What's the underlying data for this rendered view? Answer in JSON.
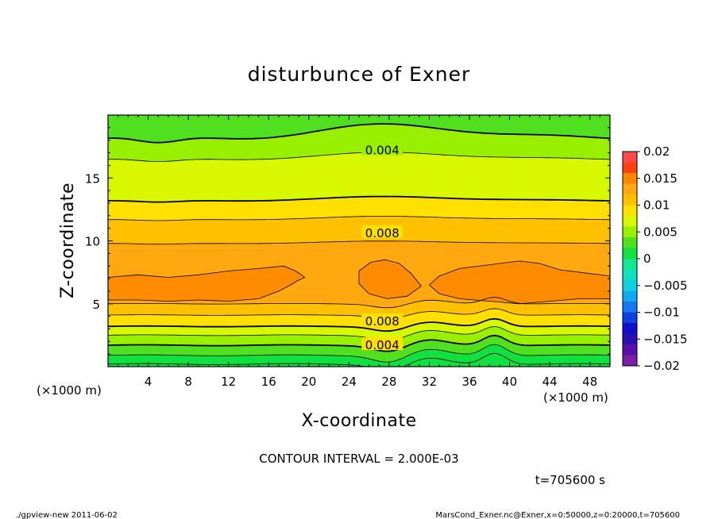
{
  "chart_data": {
    "type": "heatmap",
    "title": "disturbunce of Exner",
    "xlabel": "X-coordinate",
    "ylabel": "Z-coordinate",
    "x_unit": "(×1000 m)",
    "y_unit": "(×1000 m)",
    "xlim": [
      0,
      50
    ],
    "ylim": [
      0,
      20
    ],
    "x_ticks": [
      "4",
      "8",
      "12",
      "16",
      "20",
      "24",
      "28",
      "32",
      "36",
      "40",
      "44",
      "48"
    ],
    "x_tick_values": [
      4,
      8,
      12,
      16,
      20,
      24,
      28,
      32,
      36,
      40,
      44,
      48
    ],
    "y_ticks": [
      "5",
      "10",
      "15"
    ],
    "y_tick_values": [
      5,
      10,
      15
    ],
    "colorbar": {
      "labels": [
        "0.02",
        "0.015",
        "0.01",
        "0.005",
        "0",
        "−0.005",
        "−0.01",
        "−0.015",
        "−0.02"
      ],
      "values": [
        0.02,
        0.015,
        0.01,
        0.005,
        0,
        -0.005,
        -0.01,
        -0.015,
        -0.02
      ],
      "min": -0.02,
      "max": 0.02,
      "step": 0.002
    },
    "contour_labels": [
      {
        "text": "0.004",
        "x": 27,
        "z": 17.5
      },
      {
        "text": "0.008",
        "x": 27,
        "z": 10.6
      },
      {
        "text": "0.008",
        "x": 27,
        "z": 3.5
      },
      {
        "text": "0.004",
        "x": 27,
        "z": 1.7
      }
    ],
    "contour_interval_text": "CONTOUR INTERVAL = 2.000E-03",
    "time_label": "t=705600 s",
    "footer_left": "./gpview-new   2011-06-02",
    "footer_right": "MarsCond_Exner.nc@Exner,x=0:50000,z=0:20000,t=705600"
  }
}
